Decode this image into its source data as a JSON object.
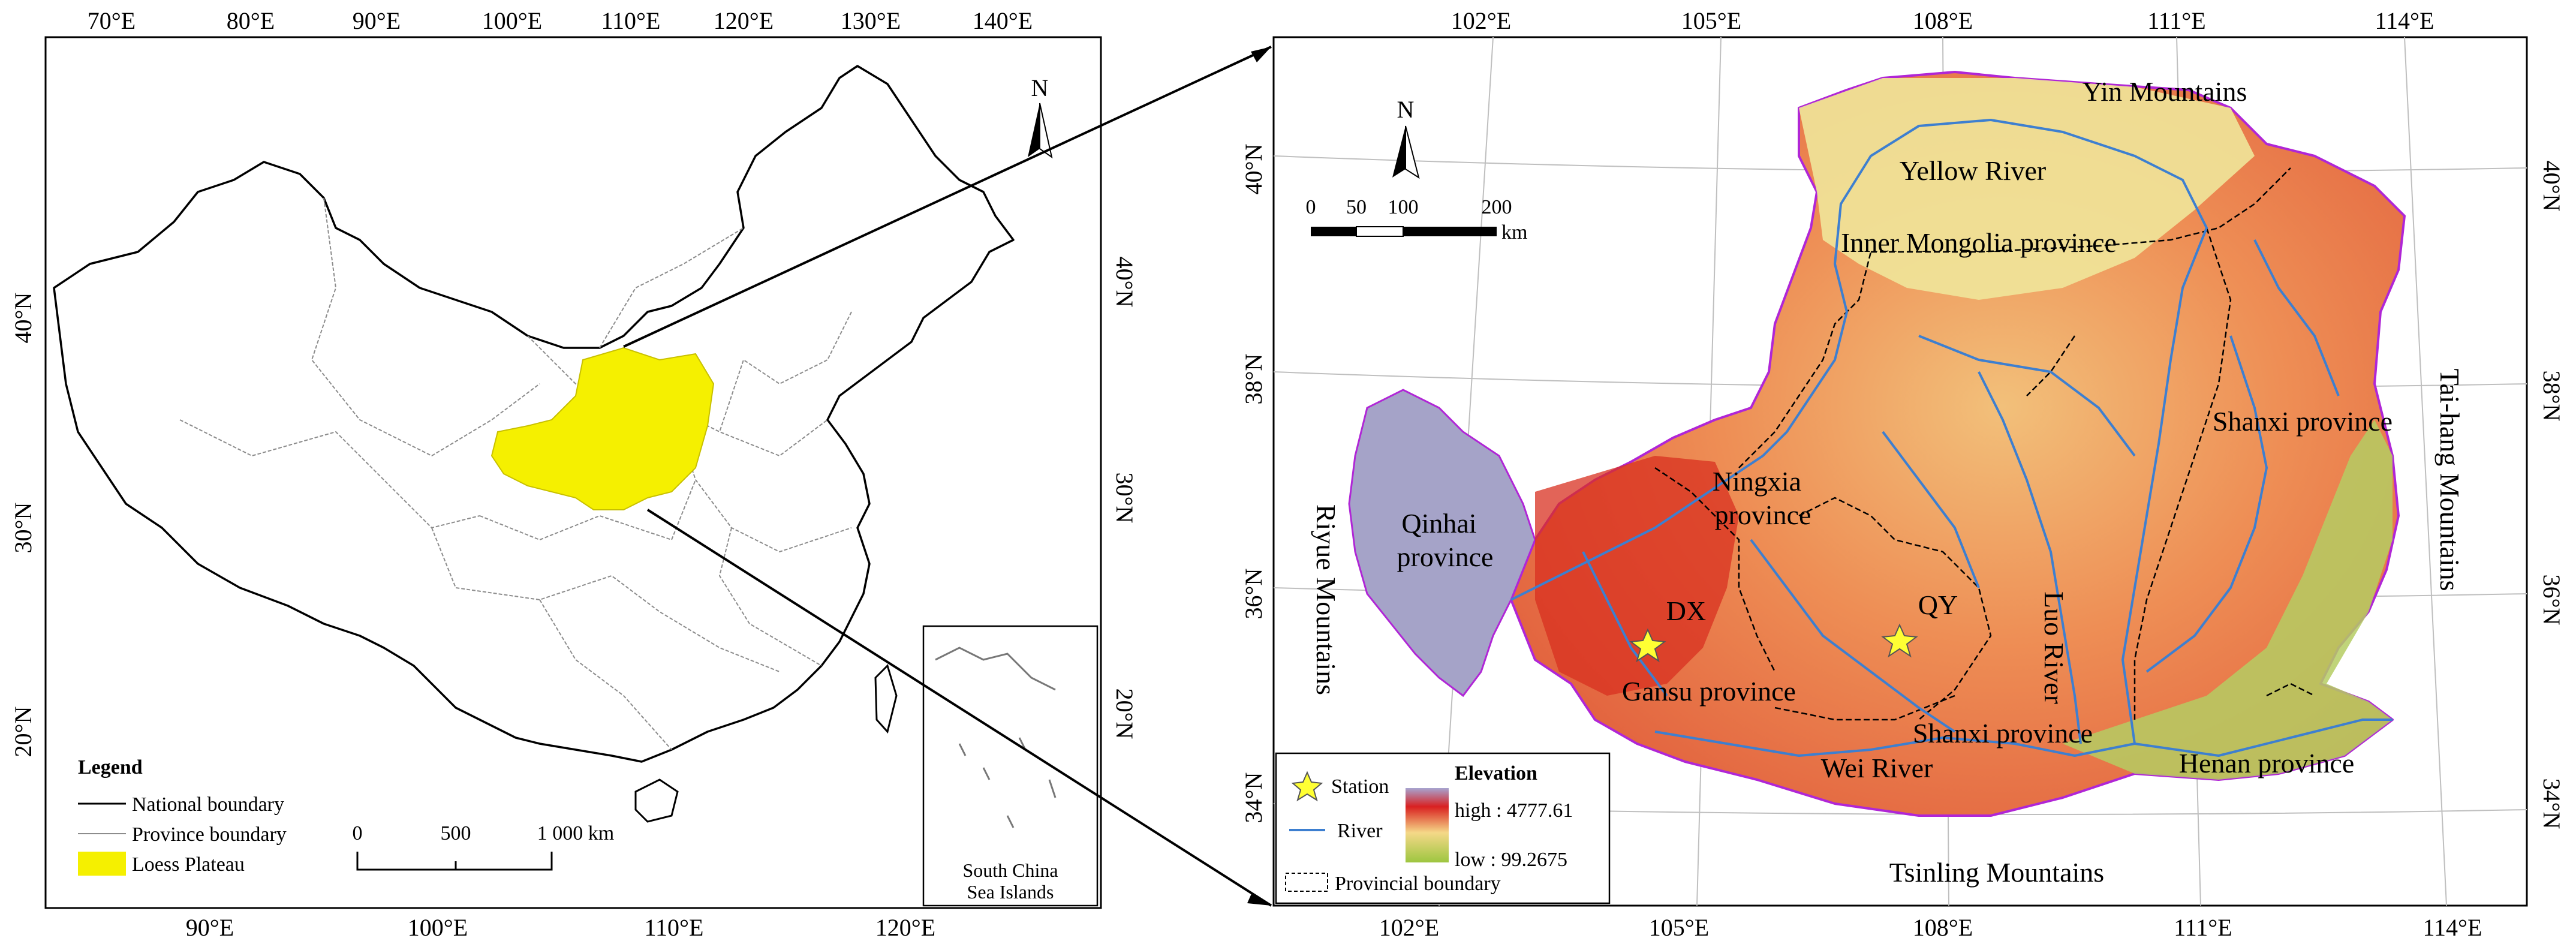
{
  "left_map": {
    "top_ticks": [
      "70°E",
      "80°E",
      "90°E",
      "100°E",
      "110°E",
      "120°E",
      "130°E",
      "140°E"
    ],
    "bottom_ticks": [
      "90°E",
      "100°E",
      "110°E",
      "120°E"
    ],
    "left_ticks": [
      "40°N",
      "30°N",
      "20°N"
    ],
    "right_ticks": [
      "40°N",
      "30°N",
      "20°N"
    ],
    "north_label": "N",
    "legend": {
      "title": "Legend",
      "items": [
        "National boundary",
        "Province boundary",
        "Loess Plateau"
      ]
    },
    "scale": {
      "labels": [
        "0",
        "500",
        "1 000 km"
      ]
    },
    "inset": {
      "line1": "South China",
      "line2": "Sea Islands"
    },
    "colors": {
      "loess": "#f5f000",
      "boundary": "#000000",
      "province": "#8c8c8c"
    }
  },
  "right_map": {
    "top_ticks": [
      "102°E",
      "105°E",
      "108°E",
      "111°E",
      "114°E"
    ],
    "bottom_ticks": [
      "102°E",
      "105°E",
      "108°E",
      "111°E",
      "114°E"
    ],
    "left_ticks": [
      "40°N",
      "38°N",
      "36°N",
      "34°N"
    ],
    "right_ticks": [
      "40°N",
      "38°N",
      "36°N",
      "34°N"
    ],
    "north_label": "N",
    "scale": {
      "labels": [
        "0",
        "50",
        "100",
        "200"
      ],
      "unit": "km"
    },
    "labels": {
      "yin": "Yin Mountains",
      "yellow_river": "Yellow River",
      "inner_mongolia": "Inner Mongolia province",
      "shanxi_n": "Shanxi province",
      "taihang": "Tai-hang Mountains",
      "ningxia_1": "Ningxia",
      "ningxia_2": "province",
      "qinhai_1": "Qinhai",
      "qinhai_2": "province",
      "riyue": "Riyue Mountains",
      "dx": "DX",
      "qy": "QY",
      "luo_river": "Luo River",
      "gansu": "Gansu province",
      "shanxi_s": "Shanxi province",
      "wei_river": "Wei River",
      "henan": "Henan province",
      "tsinling": "Tsinling Mountains"
    },
    "legend": {
      "station": "Station",
      "river": "River",
      "provincial": "Provincial boundary",
      "elev_title": "Elevation",
      "high": "high : 4777.61",
      "low": "low : 99.2675"
    },
    "colors": {
      "river": "#3d7fd0",
      "star": "#ffff33",
      "frame": "#000000",
      "plateau_edge": "#b026d6",
      "elev_high": "#c81e1e",
      "elev_mid": "#f1e1a0",
      "elev_low": "#a6c84a",
      "qinhai": "#a5a3c8"
    }
  }
}
